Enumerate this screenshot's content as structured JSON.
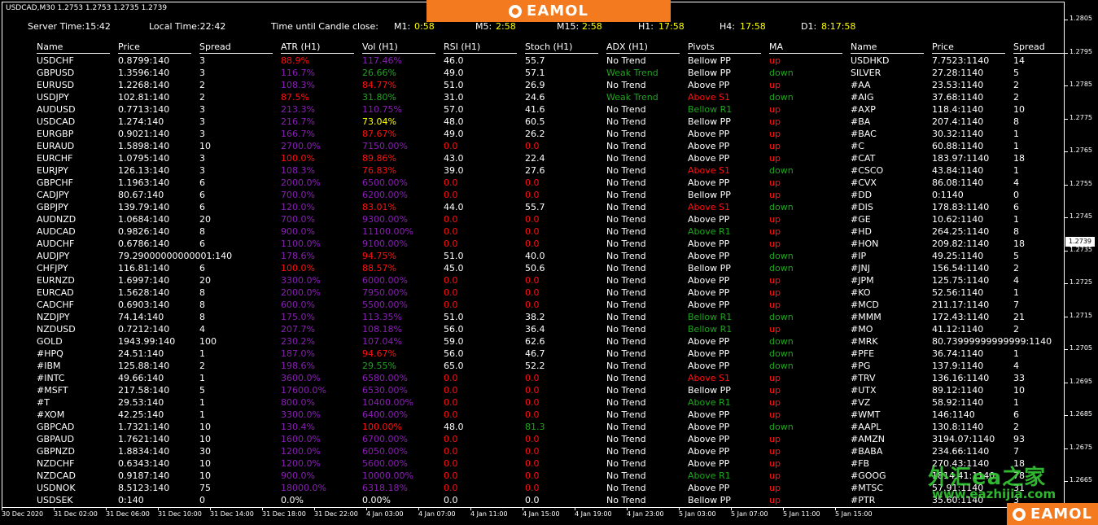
{
  "window": {
    "title": "USDCAD,M30  1.2753 1.2753 1.2735 1.2739"
  },
  "status_bar": {
    "server_time": "Server Time:15:42",
    "local_time": "Local Time:22:42",
    "candle_label": "Time until Candle close:",
    "m1_label": "M1:",
    "m1": "0:58",
    "m5_label": "M5:",
    "m5": "2:58",
    "m15_label": "M15:",
    "m15": "2:58",
    "h1_label": "H1:",
    "h1": "17:58",
    "h4_label": "H4:",
    "h4": "17:58",
    "d1_label": "D1:",
    "d1": "8:17:58"
  },
  "brand": {
    "name": "EAMOL"
  },
  "watermark": {
    "text": "外汇ea之家",
    "url": "www.eazhijia.com"
  },
  "table": {
    "headers": [
      "Name",
      "Price",
      "Spread",
      "ATR (H1)",
      "Vol (H1)",
      "RSI (H1)",
      "Stoch (H1)",
      "ADX (H1)",
      "Pivots",
      "MA"
    ],
    "rows": [
      [
        "USDCHF",
        "0.8799:140",
        "3",
        "88.9%",
        "117.46%",
        "46.0",
        "55.7",
        "No Trend",
        "Bellow PP",
        "up"
      ],
      [
        "GBPUSD",
        "1.3596:140",
        "3",
        "116.7%",
        "26.66%",
        "49.0",
        "57.1",
        "Weak Trend",
        "Bellow PP",
        "down"
      ],
      [
        "EURUSD",
        "1.2268:140",
        "2",
        "108.3%",
        "84.77%",
        "51.0",
        "26.9",
        "No Trend",
        "Above PP",
        "up"
      ],
      [
        "USDJPY",
        "102.81:140",
        "2",
        "87.5%",
        "31.80%",
        "31.0",
        "24.6",
        "Weak Trend",
        "Above S1",
        "down"
      ],
      [
        "AUDUSD",
        "0.7713:140",
        "3",
        "213.3%",
        "110.75%",
        "57.0",
        "41.6",
        "No Trend",
        "Bellow R1",
        "up"
      ],
      [
        "USDCAD",
        "1.274:140",
        "3",
        "216.7%",
        "73.04%",
        "48.0",
        "60.5",
        "No Trend",
        "Bellow PP",
        "up"
      ],
      [
        "EURGBP",
        "0.9021:140",
        "3",
        "166.7%",
        "87.67%",
        "49.0",
        "26.2",
        "No Trend",
        "Above PP",
        "up"
      ],
      [
        "EURAUD",
        "1.5898:140",
        "10",
        "2700.0%",
        "7150.00%",
        "0.0",
        "0.0",
        "No Trend",
        "Above PP",
        "up"
      ],
      [
        "EURCHF",
        "1.0795:140",
        "3",
        "100.0%",
        "89.86%",
        "43.0",
        "22.4",
        "No Trend",
        "Above PP",
        "up"
      ],
      [
        "EURJPY",
        "126.13:140",
        "3",
        "108.3%",
        "76.83%",
        "39.0",
        "27.6",
        "No Trend",
        "Above S1",
        "down"
      ],
      [
        "GBPCHF",
        "1.1963:140",
        "6",
        "2000.0%",
        "6500.00%",
        "0.0",
        "0.0",
        "No Trend",
        "Above PP",
        "up"
      ],
      [
        "CADJPY",
        "80.67:140",
        "6",
        "700.0%",
        "6200.00%",
        "0.0",
        "0.0",
        "No Trend",
        "Bellow PP",
        "up"
      ],
      [
        "GBPJPY",
        "139.79:140",
        "6",
        "120.0%",
        "83.01%",
        "44.0",
        "55.7",
        "No Trend",
        "Above S1",
        "down"
      ],
      [
        "AUDNZD",
        "1.0684:140",
        "20",
        "700.0%",
        "9300.00%",
        "0.0",
        "0.0",
        "No Trend",
        "Above PP",
        "up"
      ],
      [
        "AUDCAD",
        "0.9826:140",
        "8",
        "900.0%",
        "11100.00%",
        "0.0",
        "0.0",
        "No Trend",
        "Above R1",
        "up"
      ],
      [
        "AUDCHF",
        "0.6786:140",
        "6",
        "1100.0%",
        "9100.00%",
        "0.0",
        "0.0",
        "No Trend",
        "Above PP",
        "up"
      ],
      [
        "AUDJPY",
        "79.29000000000001:140",
        "",
        "178.6%",
        "94.75%",
        "51.0",
        "40.0",
        "No Trend",
        "Above PP",
        "down"
      ],
      [
        "CHFJPY",
        "116.81:140",
        "6",
        "100.0%",
        "88.57%",
        "45.0",
        "50.6",
        "No Trend",
        "Bellow PP",
        "down"
      ],
      [
        "EURNZD",
        "1.6997:140",
        "20",
        "3300.0%",
        "6000.00%",
        "0.0",
        "0.0",
        "No Trend",
        "Above PP",
        "up"
      ],
      [
        "EURCAD",
        "1.5628:140",
        "8",
        "2000.0%",
        "7950.00%",
        "0.0",
        "0.0",
        "No Trend",
        "Above PP",
        "up"
      ],
      [
        "CADCHF",
        "0.6903:140",
        "8",
        "600.0%",
        "5500.00%",
        "0.0",
        "0.0",
        "No Trend",
        "Above PP",
        "up"
      ],
      [
        "NZDJPY",
        "74.14:140",
        "8",
        "175.0%",
        "113.35%",
        "51.0",
        "38.2",
        "No Trend",
        "Bellow R1",
        "down"
      ],
      [
        "NZDUSD",
        "0.7212:140",
        "4",
        "207.7%",
        "108.18%",
        "56.0",
        "36.4",
        "No Trend",
        "Bellow R1",
        "up"
      ],
      [
        "GOLD",
        "1943.99:140",
        "100",
        "230.2%",
        "107.04%",
        "59.0",
        "62.6",
        "No Trend",
        "Above PP",
        "down"
      ],
      [
        "#HPQ",
        "24.51:140",
        "1",
        "187.0%",
        "94.67%",
        "56.0",
        "46.7",
        "No Trend",
        "Above PP",
        "down"
      ],
      [
        "#IBM",
        "125.88:140",
        "2",
        "198.6%",
        "29.55%",
        "65.0",
        "52.2",
        "No Trend",
        "Above PP",
        "down"
      ],
      [
        "#INTC",
        "49.66:140",
        "1",
        "3600.0%",
        "6580.00%",
        "0.0",
        "0.0",
        "No Trend",
        "Above S1",
        "up"
      ],
      [
        "#MSFT",
        "217.58:140",
        "5",
        "17600.0%",
        "6530.00%",
        "0.0",
        "0.0",
        "No Trend",
        "Bellow PP",
        "up"
      ],
      [
        "#T",
        "29.53:140",
        "1",
        "800.0%",
        "10400.00%",
        "0.0",
        "0.0",
        "No Trend",
        "Above R1",
        "up"
      ],
      [
        "#XOM",
        "42.25:140",
        "1",
        "3300.0%",
        "6400.00%",
        "0.0",
        "0.0",
        "No Trend",
        "Above PP",
        "up"
      ],
      [
        "GBPCAD",
        "1.7321:140",
        "10",
        "130.4%",
        "100.00%",
        "48.0",
        "81.3",
        "No Trend",
        "Above PP",
        "down"
      ],
      [
        "GBPAUD",
        "1.7621:140",
        "10",
        "1600.0%",
        "6700.00%",
        "0.0",
        "0.0",
        "No Trend",
        "Above PP",
        "up"
      ],
      [
        "GBPNZD",
        "1.8834:140",
        "30",
        "1200.0%",
        "6050.00%",
        "0.0",
        "0.0",
        "No Trend",
        "Above PP",
        "up"
      ],
      [
        "NZDCHF",
        "0.6343:140",
        "10",
        "1200.0%",
        "5600.00%",
        "0.0",
        "0.0",
        "No Trend",
        "Above PP",
        "up"
      ],
      [
        "NZDCAD",
        "0.9187:140",
        "10",
        "900.0%",
        "10000.00%",
        "0.0",
        "0.0",
        "No Trend",
        "Above R1",
        "up"
      ],
      [
        "USDNOK",
        "8.5123:140",
        "75",
        "18000.0%",
        "6318.18%",
        "0.0",
        "0.0",
        "No Trend",
        "Above PP",
        "up"
      ],
      [
        "USDSEK",
        "0:140",
        "0",
        "0.0%",
        "0.00%",
        "0.0",
        "0.0",
        "No Trend",
        "Bellow PP",
        "up"
      ]
    ],
    "colors": [
      [
        "w",
        "w",
        "w",
        "r",
        "p",
        "w",
        "w",
        "w",
        "w",
        "r"
      ],
      [
        "w",
        "w",
        "w",
        "p",
        "g",
        "w",
        "w",
        "g",
        "w",
        "g"
      ],
      [
        "w",
        "w",
        "w",
        "p",
        "r",
        "w",
        "w",
        "w",
        "w",
        "r"
      ],
      [
        "w",
        "w",
        "w",
        "r",
        "g",
        "w",
        "w",
        "g",
        "r",
        "g"
      ],
      [
        "w",
        "w",
        "w",
        "p",
        "p",
        "w",
        "w",
        "w",
        "g",
        "r"
      ],
      [
        "w",
        "w",
        "w",
        "p",
        "y",
        "w",
        "w",
        "w",
        "w",
        "r"
      ],
      [
        "w",
        "w",
        "w",
        "p",
        "r",
        "w",
        "w",
        "w",
        "w",
        "r"
      ],
      [
        "w",
        "w",
        "w",
        "p",
        "p",
        "r",
        "r",
        "w",
        "w",
        "r"
      ],
      [
        "w",
        "w",
        "w",
        "r",
        "r",
        "w",
        "w",
        "w",
        "w",
        "r"
      ],
      [
        "w",
        "w",
        "w",
        "p",
        "r",
        "w",
        "w",
        "w",
        "r",
        "g"
      ],
      [
        "w",
        "w",
        "w",
        "p",
        "p",
        "r",
        "r",
        "w",
        "w",
        "r"
      ],
      [
        "w",
        "w",
        "w",
        "p",
        "p",
        "r",
        "r",
        "w",
        "w",
        "r"
      ],
      [
        "w",
        "w",
        "w",
        "p",
        "r",
        "w",
        "w",
        "w",
        "r",
        "g"
      ],
      [
        "w",
        "w",
        "w",
        "p",
        "p",
        "r",
        "r",
        "w",
        "w",
        "r"
      ],
      [
        "w",
        "w",
        "w",
        "p",
        "p",
        "r",
        "r",
        "w",
        "g",
        "r"
      ],
      [
        "w",
        "w",
        "w",
        "p",
        "p",
        "r",
        "r",
        "w",
        "w",
        "r"
      ],
      [
        "w",
        "w",
        "w",
        "p",
        "r",
        "w",
        "w",
        "w",
        "w",
        "g"
      ],
      [
        "w",
        "w",
        "w",
        "r",
        "r",
        "w",
        "w",
        "w",
        "w",
        "g"
      ],
      [
        "w",
        "w",
        "w",
        "p",
        "p",
        "r",
        "r",
        "w",
        "w",
        "r"
      ],
      [
        "w",
        "w",
        "w",
        "p",
        "p",
        "r",
        "r",
        "w",
        "w",
        "r"
      ],
      [
        "w",
        "w",
        "w",
        "p",
        "p",
        "r",
        "r",
        "w",
        "w",
        "r"
      ],
      [
        "w",
        "w",
        "w",
        "p",
        "p",
        "w",
        "w",
        "w",
        "g",
        "g"
      ],
      [
        "w",
        "w",
        "w",
        "p",
        "p",
        "w",
        "w",
        "w",
        "g",
        "r"
      ],
      [
        "w",
        "w",
        "w",
        "p",
        "p",
        "w",
        "w",
        "w",
        "w",
        "g"
      ],
      [
        "w",
        "w",
        "w",
        "p",
        "r",
        "w",
        "w",
        "w",
        "w",
        "g"
      ],
      [
        "w",
        "w",
        "w",
        "p",
        "g",
        "w",
        "w",
        "w",
        "w",
        "g"
      ],
      [
        "w",
        "w",
        "w",
        "p",
        "p",
        "r",
        "r",
        "w",
        "r",
        "r"
      ],
      [
        "w",
        "w",
        "w",
        "p",
        "p",
        "r",
        "r",
        "w",
        "w",
        "r"
      ],
      [
        "w",
        "w",
        "w",
        "p",
        "p",
        "r",
        "r",
        "w",
        "g",
        "r"
      ],
      [
        "w",
        "w",
        "w",
        "p",
        "p",
        "r",
        "r",
        "w",
        "w",
        "r"
      ],
      [
        "w",
        "w",
        "w",
        "p",
        "r",
        "w",
        "g",
        "w",
        "w",
        "g"
      ],
      [
        "w",
        "w",
        "w",
        "p",
        "p",
        "r",
        "r",
        "w",
        "w",
        "r"
      ],
      [
        "w",
        "w",
        "w",
        "p",
        "p",
        "r",
        "r",
        "w",
        "w",
        "r"
      ],
      [
        "w",
        "w",
        "w",
        "p",
        "p",
        "r",
        "r",
        "w",
        "w",
        "r"
      ],
      [
        "w",
        "w",
        "w",
        "p",
        "p",
        "r",
        "r",
        "w",
        "g",
        "r"
      ],
      [
        "w",
        "w",
        "w",
        "p",
        "p",
        "r",
        "r",
        "w",
        "w",
        "r"
      ],
      [
        "w",
        "w",
        "w",
        "w",
        "w",
        "w",
        "w",
        "w",
        "w",
        "r"
      ]
    ]
  },
  "table2": {
    "headers": [
      "Name",
      "Price",
      "Spread"
    ],
    "rows": [
      [
        "USDHKD",
        "7.7523:1140",
        "14"
      ],
      [
        "SILVER",
        "27.28:1140",
        "5"
      ],
      [
        "#AA",
        "23.53:1140",
        "2"
      ],
      [
        "#AIG",
        "37.68:1140",
        "2"
      ],
      [
        "#AXP",
        "118.4:1140",
        "10"
      ],
      [
        "#BA",
        "207.4:1140",
        "8"
      ],
      [
        "#BAC",
        "30.32:1140",
        "1"
      ],
      [
        "#C",
        "60.88:1140",
        "1"
      ],
      [
        "#CAT",
        "183.97:1140",
        "18"
      ],
      [
        "#CSCO",
        "43.84:1140",
        "1"
      ],
      [
        "#CVX",
        "86.08:1140",
        "4"
      ],
      [
        "#DD",
        "0:1140",
        "0"
      ],
      [
        "#DIS",
        "178.83:1140",
        "6"
      ],
      [
        "#GE",
        "10.62:1140",
        "1"
      ],
      [
        "#HD",
        "264.25:1140",
        "8"
      ],
      [
        "#HON",
        "209.82:1140",
        "18"
      ],
      [
        "#IP",
        "49.25:1140",
        "5"
      ],
      [
        "#JNJ",
        "156.54:1140",
        "2"
      ],
      [
        "#JPM",
        "125.75:1140",
        "4"
      ],
      [
        "#KO",
        "52.56:1140",
        "1"
      ],
      [
        "#MCD",
        "211.17:1140",
        "7"
      ],
      [
        "#MMM",
        "172.43:1140",
        "21"
      ],
      [
        "#MO",
        "41.12:1140",
        "2"
      ],
      [
        "#MRK",
        "80.73999999999999:1140",
        ""
      ],
      [
        "#PFE",
        "36.74:1140",
        "1"
      ],
      [
        "#PG",
        "137.9:1140",
        "4"
      ],
      [
        "#TRV",
        "136.16:1140",
        "33"
      ],
      [
        "#UTX",
        "89.12:1140",
        "10"
      ],
      [
        "#VZ",
        "58.92:1140",
        "1"
      ],
      [
        "#WMT",
        "146:1140",
        "6"
      ],
      [
        "#AAPL",
        "130.8:1140",
        "2"
      ],
      [
        "#AMZN",
        "3194.07:1140",
        "93"
      ],
      [
        "#BABA",
        "234.66:1140",
        "7"
      ],
      [
        "#FB",
        "270.43:1140",
        "18"
      ],
      [
        "#GOOG",
        "1814.41:1140",
        "78"
      ],
      [
        "#MTSC",
        "57.91:1140",
        "31"
      ],
      [
        "#PTR",
        "35.60:1140",
        "3"
      ]
    ]
  },
  "y_axis": {
    "ticks": [
      "1.2805",
      "1.2795",
      "1.2785",
      "1.2775",
      "1.2765",
      "1.2755",
      "1.2745",
      "1.2735",
      "1.2725",
      "1.2715",
      "1.2705",
      "1.2695",
      "1.2685",
      "1.2675",
      "1.2665"
    ],
    "current_price": "1.2739"
  },
  "x_axis": {
    "ticks": [
      "30 Dec 2020",
      "31 Dec 02:00",
      "31 Dec 06:00",
      "31 Dec 10:00",
      "31 Dec 14:00",
      "31 Dec 18:00",
      "31 Dec 22:00",
      "4 Jan 03:00",
      "4 Jan 07:00",
      "4 Jan 11:00",
      "4 Jan 15:00",
      "4 Jan 19:00",
      "4 Jan 23:00",
      "5 Jan 03:00",
      "5 Jan 07:00",
      "5 Jan 11:00",
      "5 Jan 15:00"
    ]
  }
}
